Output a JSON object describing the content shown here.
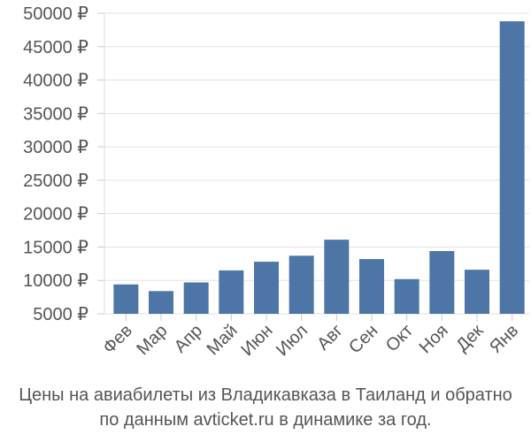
{
  "chart_data": {
    "type": "bar",
    "categories": [
      "Фев",
      "Мар",
      "Апр",
      "Май",
      "Июн",
      "Июл",
      "Авг",
      "Сен",
      "Окт",
      "Ноя",
      "Дек",
      "Янв"
    ],
    "values": [
      9400,
      8400,
      9700,
      11500,
      12800,
      13700,
      16100,
      13200,
      10200,
      14400,
      11600,
      48800
    ],
    "ylim": [
      5000,
      50000
    ],
    "yticks": [
      5000,
      10000,
      15000,
      20000,
      25000,
      30000,
      35000,
      40000,
      45000,
      50000
    ],
    "ytick_labels": [
      "5000 ₽",
      "10000 ₽",
      "15000 ₽",
      "20000 ₽",
      "25000 ₽",
      "30000 ₽",
      "35000 ₽",
      "40000 ₽",
      "45000 ₽",
      "50000 ₽"
    ],
    "bar_color": "#4d76a6",
    "grid": true,
    "caption_line1": "Цены на авиабилеты из Владикавказа в Таиланд и обратно",
    "caption_line2": "по данным avticket.ru в динамике за год."
  }
}
